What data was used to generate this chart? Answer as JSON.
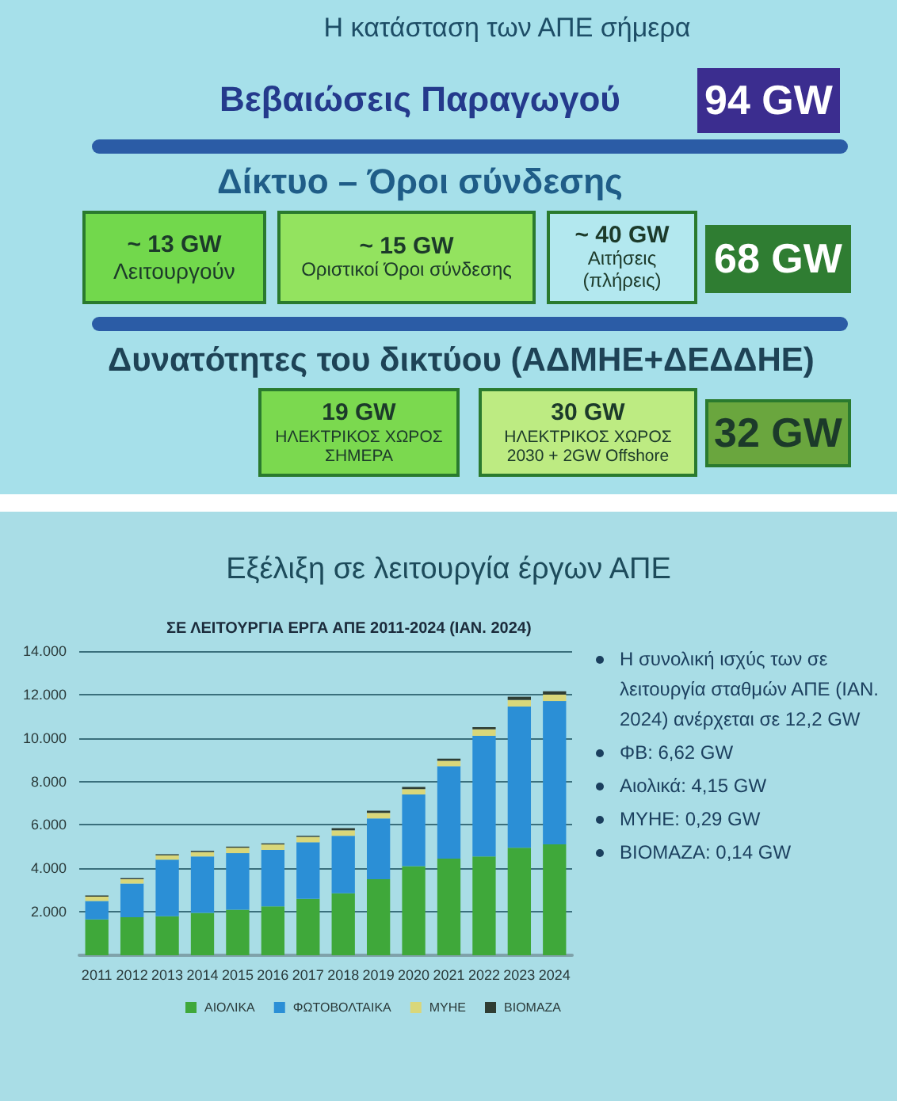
{
  "chart_data": [
    {
      "type": "other",
      "title": "Η κατάσταση των ΑΠΕ σήμερα",
      "annotations": [
        "Βεβαιώσεις Παραγωγού",
        "94 GW",
        "Δίκτυο – Όροι σύνδεσης",
        "~ 13 GW\nΛειτουργούν",
        "~ 15 GW\nΟριστικοί Όροι σύνδεσης",
        "~ 40 GW\nΑιτήσεις\n(πλήρεις)",
        "68 GW",
        "Δυνατότητες του δικτύου (ΑΔΜΗΕ+ΔΕΔΔΗΕ)",
        "19 GW\nΗΛΕΚΤΡΙΚΟΣ ΧΩΡΟΣ\nΣΗΜΕΡΑ",
        "30 GW\nΗΛΕΚΤΡΙΚΟΣ ΧΩΡΟΣ\n2030 + 2GW Offshore",
        "32 GW"
      ],
      "colors": [
        null,
        "#3b2d8f",
        null,
        "#72d84c",
        "#93e35f",
        "#b3e8ef",
        "#2f7d32",
        null,
        "#7bd94f",
        "#bdeb82",
        "#6aa63e"
      ]
    },
    {
      "type": "bar",
      "title": "Εξέλιξη σε λειτουργία έργων ΑΠΕ",
      "subtitle": "ΣΕ ΛΕΙΤΟΥΡΓΙΑ ΕΡΓΑ ΑΠΕ 2011-2024 (ΙΑΝ. 2024)",
      "categories": [
        "2011",
        "2012",
        "2013",
        "2014",
        "2015",
        "2016",
        "2017",
        "2018",
        "2019",
        "2020",
        "2021",
        "2022",
        "2023",
        "2024"
      ],
      "series": [
        {
          "name": "ΑΙΟΛΙΚΑ",
          "color": "#3fa83a",
          "values": [
            1650,
            1750,
            1800,
            1950,
            2100,
            2250,
            2600,
            2850,
            3500,
            4100,
            4450,
            4550,
            4950,
            5100
          ]
        },
        {
          "name": "ΦΩΤΟΒΟΛΤΑΙΚΑ",
          "color": "#2b8fd6",
          "values": [
            850,
            1550,
            2600,
            2600,
            2600,
            2600,
            2600,
            2650,
            2800,
            3300,
            4250,
            5550,
            6500,
            6600
          ]
        },
        {
          "name": "ΜΥΗΕ",
          "color": "#d9d77a",
          "values": [
            200,
            200,
            200,
            200,
            250,
            250,
            250,
            250,
            250,
            250,
            250,
            300,
            300,
            300
          ]
        },
        {
          "name": "ΒΙΟΜΑΖΑ",
          "color": "#2f3d33",
          "values": [
            50,
            50,
            50,
            50,
            50,
            50,
            50,
            100,
            100,
            100,
            100,
            100,
            150,
            150
          ]
        }
      ],
      "stacked": true,
      "ylim": [
        0,
        14000
      ],
      "yticks": [
        {
          "value": 2000,
          "label": "2.000"
        },
        {
          "value": 4000,
          "label": "4.000"
        },
        {
          "value": 6000,
          "label": "6.000"
        },
        {
          "value": 8000,
          "label": "8.000"
        },
        {
          "value": 10000,
          "label": "10.000"
        },
        {
          "value": 12000,
          "label": "12.000"
        },
        {
          "value": 14000,
          "label": "14.000"
        }
      ],
      "grid": "y",
      "legend": "bottom",
      "annotations": [
        "Η συνολική ισχύς των σε λειτουργία σταθμών ΑΠΕ (ΙΑΝ. 2024) ανέρχεται σε 12,2 GW",
        "ΦΒ: 6,62 GW",
        "Αιολικά: 4,15 GW",
        "ΜΥΗΕ: 0,29 GW",
        "ΒΙΟΜΑΖΑ: 0,14 GW"
      ]
    }
  ]
}
